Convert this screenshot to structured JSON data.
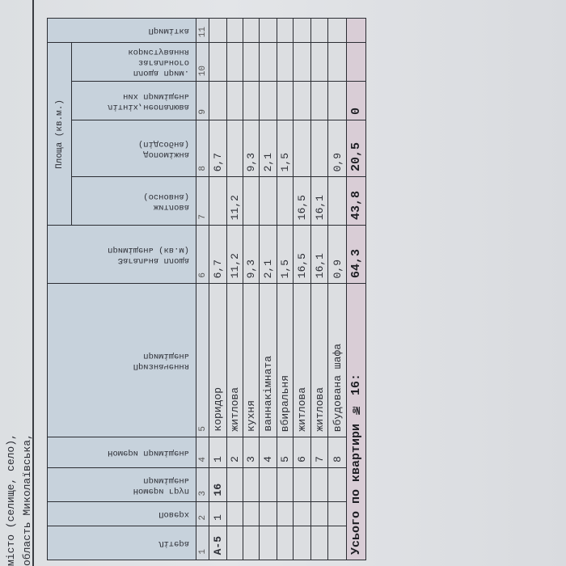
{
  "document_header": {
    "line1": "місто (селище, село),",
    "line2": "область Миколаївська,"
  },
  "table": {
    "area_group": "Площа (кв.м.)",
    "columns": [
      {
        "num": "1",
        "label": "Літера"
      },
      {
        "num": "2",
        "label": "Поверх"
      },
      {
        "num": "3",
        "label": "Номери груп\nприміщень"
      },
      {
        "num": "4",
        "label": "Номери приміщень"
      },
      {
        "num": "5",
        "label": "Призначення\nприміщень"
      },
      {
        "num": "6",
        "label": "Загальна площа\nприміщень (кв.м)"
      },
      {
        "num": "7",
        "label": "житлова\n(основна)"
      },
      {
        "num": "8",
        "label": "допоміжна\n(підсобна)"
      },
      {
        "num": "9",
        "label": "літніх,неопалюва\nних приміщень"
      },
      {
        "num": "10",
        "label": "площа прим.\nзагального\nкористування"
      },
      {
        "num": "11",
        "label": "Примітка"
      }
    ],
    "rows": [
      [
        "А-5",
        "1",
        "16",
        "1",
        "коридор",
        "6,7",
        "",
        "6,7",
        "",
        "",
        ""
      ],
      [
        "",
        "",
        "",
        "2",
        "житлова",
        "11,2",
        "11,2",
        "",
        "",
        "",
        ""
      ],
      [
        "",
        "",
        "",
        "3",
        "кухня",
        "9,3",
        "",
        "9,3",
        "",
        "",
        ""
      ],
      [
        "",
        "",
        "",
        "4",
        "ваннакімната",
        "2,1",
        "",
        "2,1",
        "",
        "",
        ""
      ],
      [
        "",
        "",
        "",
        "5",
        "вбиральня",
        "1,5",
        "",
        "1,5",
        "",
        "",
        ""
      ],
      [
        "",
        "",
        "",
        "6",
        "житлова",
        "16,5",
        "16,5",
        "",
        "",
        "",
        ""
      ],
      [
        "",
        "",
        "",
        "7",
        "житлова",
        "16,1",
        "16,1",
        "",
        "",
        "",
        ""
      ],
      [
        "",
        "",
        "",
        "8",
        "вбудована шафа",
        "0,9",
        "",
        "0,9",
        "",
        "",
        ""
      ]
    ],
    "total": {
      "label": "Усього по квартири № 16:",
      "values": [
        "64,3",
        "43,8",
        "20,5",
        "0",
        "",
        ""
      ]
    }
  }
}
